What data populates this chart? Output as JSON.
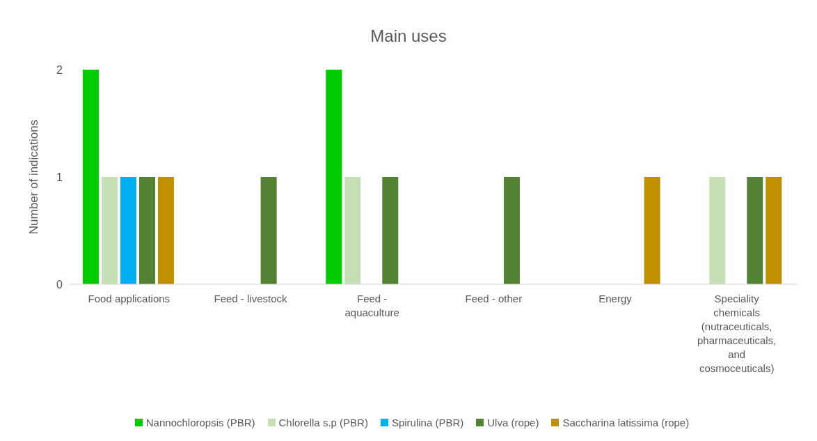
{
  "chart_data": {
    "type": "bar",
    "title": "Main uses",
    "ylabel": "Number of indications",
    "categories": [
      "Food applications",
      "Feed - livestock",
      "Feed - aquaculture",
      "Feed - other",
      "Energy",
      "Speciality chemicals (nutraceuticals, pharmaceuticals, and cosmoceuticals)"
    ],
    "series": [
      {
        "name": "Nannochloropsis (PBR)",
        "color": "#00cc00",
        "values": [
          2,
          0,
          2,
          0,
          0,
          0
        ]
      },
      {
        "name": "Chlorella s.p (PBR)",
        "color": "#c5e0b4",
        "values": [
          1,
          0,
          1,
          0,
          0,
          1
        ]
      },
      {
        "name": "Spirulina (PBR)",
        "color": "#00b0f0",
        "values": [
          1,
          0,
          0,
          0,
          0,
          0
        ]
      },
      {
        "name": "Ulva (rope)",
        "color": "#548235",
        "values": [
          1,
          1,
          1,
          1,
          0,
          1
        ]
      },
      {
        "name": "Saccharina latissima (rope)",
        "color": "#bf9000",
        "values": [
          1,
          0,
          0,
          0,
          1,
          1
        ]
      }
    ],
    "ylim": [
      0,
      2
    ],
    "yticks": [
      0,
      1,
      2
    ],
    "grid": false,
    "legend": "bottom"
  }
}
